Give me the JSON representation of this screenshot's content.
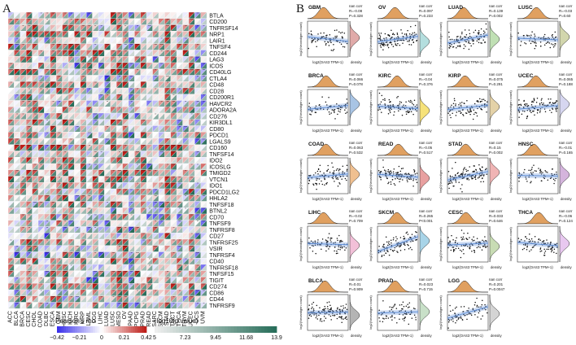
{
  "panel_labels": {
    "a": "A",
    "b": "B"
  },
  "chart_data": [
    {
      "type": "heatmap",
      "panel": "A",
      "title": "",
      "xlabel": "",
      "ylabel": "",
      "columns": [
        "ACC",
        "BLCA",
        "BRCA",
        "CESC",
        "CHOL",
        "COAD",
        "DLBC",
        "ESCA",
        "GBM",
        "HNSC",
        "KICH",
        "KIRC",
        "KIRP",
        "LAML",
        "LGG",
        "LIHC",
        "LUAD",
        "LUSC",
        "MESO",
        "OV",
        "PAAD",
        "PCPG",
        "PRAD",
        "READ",
        "SARC",
        "SKCM",
        "STAD",
        "TGCT",
        "THCA",
        "THYM",
        "UCEC",
        "UCS",
        "UVM"
      ],
      "rows": [
        "BTLA",
        "CD200",
        "TNFRSF14",
        "NRP1",
        "LAIR1",
        "TNFSF4",
        "CD244",
        "LAG3",
        "ICOS",
        "CD40LG",
        "CTLA4",
        "CD48",
        "CD28",
        "CD200R1",
        "HAVCR2",
        "ADORA2A",
        "CD276",
        "KIR3DL1",
        "CD80",
        "PDCD1",
        "LGALS9",
        "CD160",
        "TNFSF14",
        "IDO2",
        "ICOSLG",
        "TMIGD2",
        "VTCN1",
        "IDO1",
        "PDCD1LG2",
        "HHLA2",
        "TNFSF18",
        "BTNL2",
        "CD70",
        "TNFSF9",
        "TNFRSF8",
        "CD27",
        "TNFRSF25",
        "VSIR",
        "TNFRSF4",
        "CD40",
        "TNFRSF18",
        "TNFSF15",
        "TIGIT",
        "CD274",
        "CD86",
        "CD44",
        "TNFRSF9"
      ],
      "legend_rho": {
        "title": "Pearson's rho",
        "ticks": [
          "−0.42",
          "−0.21",
          "0",
          "0.21",
          "0.42"
        ]
      },
      "legend_p": {
        "title": "−log10(p value)",
        "ticks": [
          "5",
          "7.23",
          "9.45",
          "11.68",
          "13.9"
        ]
      }
    },
    {
      "type": "scatter",
      "panel": "B",
      "xlabel": "log2(OAS3 TPM+1)",
      "ylabel": "log2(Neoantigen count)",
      "density_label": "density",
      "method_label": "nan corr",
      "panels": [
        {
          "cancer": "GBM",
          "r": "R=-0.08",
          "p": "P=0.328"
        },
        {
          "cancer": "OV",
          "r": "R=0.097",
          "p": "P=0.233"
        },
        {
          "cancer": "LUAD",
          "r": "R=0.139",
          "p": "P=0.002"
        },
        {
          "cancer": "LUSC",
          "r": "R=-0.03",
          "p": "P=0.60"
        },
        {
          "cancer": "BRCA",
          "r": "R=0.066",
          "p": "P=0.078"
        },
        {
          "cancer": "KIRC",
          "r": "R=-0.04",
          "p": "P=0.376"
        },
        {
          "cancer": "KIRP",
          "r": "R=0.075",
          "p": "P=0.291"
        },
        {
          "cancer": "UCEC",
          "r": "R=0.065",
          "p": "P=0.188"
        },
        {
          "cancer": "COAD",
          "r": "R=0.063",
          "p": "P=0.532"
        },
        {
          "cancer": "READ",
          "r": "R=-0.05",
          "p": "P=0.517"
        },
        {
          "cancer": "STAD",
          "r": "R=0.15",
          "p": "P=0.002"
        },
        {
          "cancer": "HNSC",
          "r": "R=-0.01",
          "p": "P=0.165"
        },
        {
          "cancer": "LIHC",
          "r": "R=-0.02",
          "p": "P=0.709"
        },
        {
          "cancer": "SKCM",
          "r": "R=0.265",
          "p": "P<0.001"
        },
        {
          "cancer": "CESC",
          "r": "R=0.033",
          "p": "P=0.646"
        },
        {
          "cancer": "THCA",
          "r": "R=-0.06",
          "p": "P=0.124"
        },
        {
          "cancer": "BLCA",
          "r": "R=0.01",
          "p": "P=0.909"
        },
        {
          "cancer": "PRAD",
          "r": "R=0.023",
          "p": "P=0.715"
        },
        {
          "cancer": "LGG",
          "r": "R=0.201",
          "p": "P=0.0047"
        }
      ],
      "colors": [
        "#e0aaa9",
        "#b4dede",
        "#c0e0b4",
        "#d2d6ad",
        "#a8c4e4",
        "#f6e27a",
        "#e4d2a8",
        "#d6d6f0",
        "#f0c090",
        "#e8a0a0",
        "#f0b4b4",
        "#d4b4dc",
        "#f2c0d8",
        "#a8d4e8",
        "#c8dcb4",
        "#e8c8f0",
        "#b4b4b4",
        "#c8e0c8",
        "#d4d4d4"
      ],
      "top_density_color": "#e0a060",
      "fit_color": "#5f8fd8"
    }
  ]
}
